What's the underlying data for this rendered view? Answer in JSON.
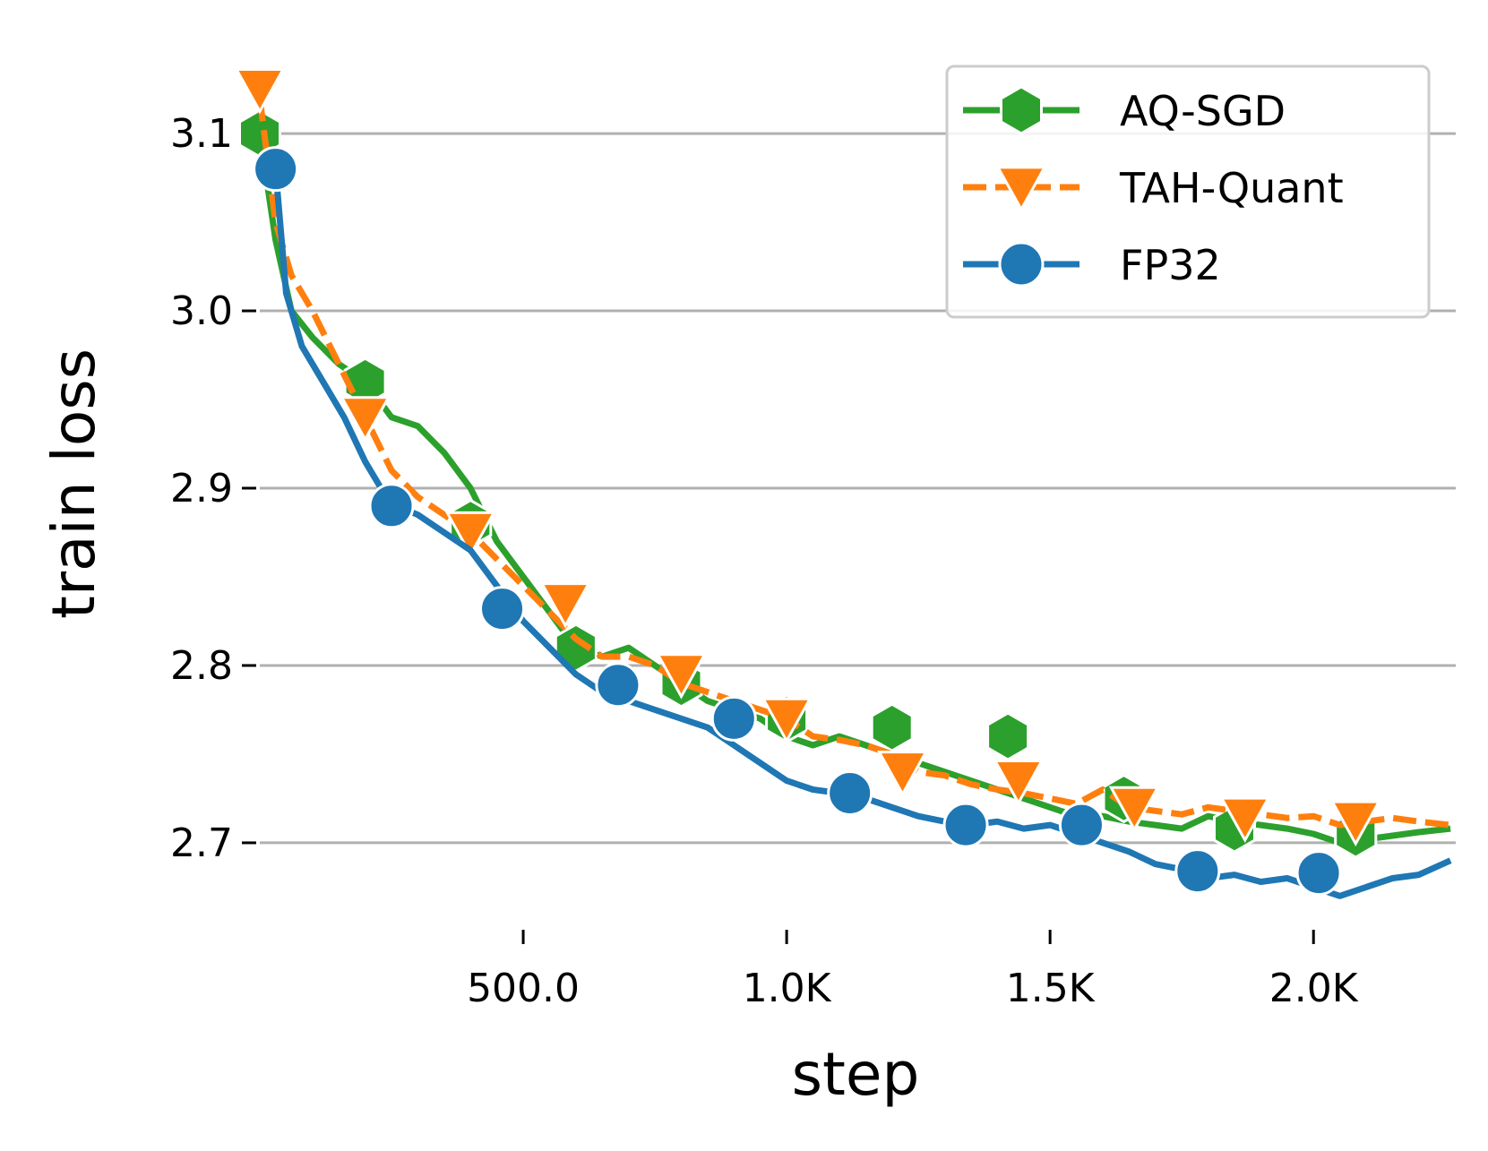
{
  "chart_data": {
    "type": "line",
    "title": "",
    "xlabel": "step",
    "ylabel": "train loss",
    "xlim": [
      0,
      2270
    ],
    "ylim": [
      2.655,
      3.145
    ],
    "xticks": [
      500,
      1000,
      1500,
      2000
    ],
    "xtick_labels": [
      "500.0",
      "1.0K",
      "1.5K",
      "2.0K"
    ],
    "yticks": [
      2.7,
      2.8,
      2.9,
      3.0,
      3.1
    ],
    "ytick_labels": [
      "2.7",
      "2.8",
      "2.9",
      "3.0",
      "3.1"
    ],
    "grid": "y",
    "legend_position": "top-right",
    "series": [
      {
        "name": "AQ-SGD",
        "color": "#2ca02c",
        "linestyle": "solid",
        "marker": "hexagon",
        "x": [
          0,
          30,
          60,
          100,
          150,
          200,
          250,
          300,
          350,
          400,
          450,
          500,
          550,
          600,
          650,
          700,
          750,
          800,
          850,
          900,
          950,
          1000,
          1050,
          1100,
          1150,
          1200,
          1250,
          1300,
          1350,
          1400,
          1450,
          1500,
          1550,
          1600,
          1650,
          1700,
          1750,
          1800,
          1850,
          1900,
          1950,
          2000,
          2050,
          2100,
          2150,
          2200,
          2260
        ],
        "y": [
          3.1,
          3.04,
          3.0,
          2.985,
          2.97,
          2.96,
          2.94,
          2.935,
          2.92,
          2.9,
          2.87,
          2.85,
          2.83,
          2.81,
          2.805,
          2.81,
          2.8,
          2.79,
          2.78,
          2.775,
          2.77,
          2.76,
          2.755,
          2.76,
          2.755,
          2.75,
          2.745,
          2.74,
          2.735,
          2.73,
          2.725,
          2.72,
          2.715,
          2.715,
          2.712,
          2.71,
          2.708,
          2.715,
          2.712,
          2.71,
          2.708,
          2.705,
          2.7,
          2.702,
          2.704,
          2.706,
          2.708
        ],
        "marker_x": [
          0,
          200,
          400,
          600,
          800,
          1000,
          1200,
          1420,
          1640,
          1850,
          2080
        ],
        "marker_y": [
          3.1,
          2.96,
          2.88,
          2.81,
          2.79,
          2.77,
          2.765,
          2.76,
          2.725,
          2.708,
          2.705
        ]
      },
      {
        "name": "TAH-Quant",
        "color": "#ff7f0e",
        "linestyle": "dashed",
        "marker": "triangle_down",
        "x": [
          0,
          30,
          60,
          100,
          150,
          200,
          250,
          300,
          350,
          400,
          450,
          500,
          550,
          600,
          650,
          700,
          750,
          800,
          850,
          900,
          950,
          1000,
          1050,
          1100,
          1150,
          1200,
          1250,
          1300,
          1350,
          1400,
          1450,
          1500,
          1550,
          1600,
          1650,
          1700,
          1750,
          1800,
          1850,
          1900,
          1950,
          2000,
          2050,
          2100,
          2150,
          2200,
          2260
        ],
        "y": [
          3.12,
          3.05,
          3.02,
          3.0,
          2.97,
          2.94,
          2.91,
          2.895,
          2.885,
          2.875,
          2.86,
          2.845,
          2.83,
          2.815,
          2.805,
          2.805,
          2.8,
          2.79,
          2.785,
          2.78,
          2.775,
          2.77,
          2.76,
          2.758,
          2.755,
          2.75,
          2.74,
          2.738,
          2.733,
          2.73,
          2.728,
          2.725,
          2.722,
          2.73,
          2.72,
          2.718,
          2.716,
          2.72,
          2.718,
          2.716,
          2.714,
          2.715,
          2.71,
          2.712,
          2.714,
          2.712,
          2.71
        ],
        "marker_x": [
          0,
          200,
          400,
          580,
          800,
          1000,
          1220,
          1440,
          1660,
          1870,
          2080
        ],
        "marker_y": [
          3.125,
          2.94,
          2.875,
          2.835,
          2.795,
          2.77,
          2.74,
          2.735,
          2.72,
          2.714,
          2.712
        ]
      },
      {
        "name": "FP32",
        "color": "#1f77b4",
        "linestyle": "solid",
        "marker": "circle",
        "x": [
          30,
          50,
          80,
          120,
          160,
          200,
          230,
          260,
          300,
          350,
          400,
          450,
          500,
          550,
          600,
          650,
          700,
          750,
          800,
          850,
          900,
          950,
          1000,
          1050,
          1100,
          1150,
          1200,
          1250,
          1300,
          1350,
          1400,
          1450,
          1500,
          1550,
          1600,
          1650,
          1700,
          1750,
          1800,
          1850,
          1900,
          1950,
          2000,
          2050,
          2100,
          2150,
          2200,
          2260
        ],
        "y": [
          3.08,
          3.01,
          2.98,
          2.96,
          2.94,
          2.915,
          2.9,
          2.89,
          2.885,
          2.875,
          2.865,
          2.845,
          2.825,
          2.81,
          2.795,
          2.785,
          2.78,
          2.775,
          2.77,
          2.765,
          2.755,
          2.745,
          2.735,
          2.73,
          2.728,
          2.725,
          2.72,
          2.715,
          2.712,
          2.71,
          2.712,
          2.708,
          2.71,
          2.705,
          2.7,
          2.695,
          2.688,
          2.685,
          2.68,
          2.682,
          2.678,
          2.68,
          2.675,
          2.67,
          2.675,
          2.68,
          2.682,
          2.69
        ],
        "marker_x": [
          30,
          250,
          460,
          680,
          900,
          1120,
          1340,
          1560,
          1780,
          2010
        ],
        "marker_y": [
          3.08,
          2.89,
          2.832,
          2.789,
          2.77,
          2.728,
          2.71,
          2.71,
          2.684,
          2.683
        ]
      }
    ]
  }
}
